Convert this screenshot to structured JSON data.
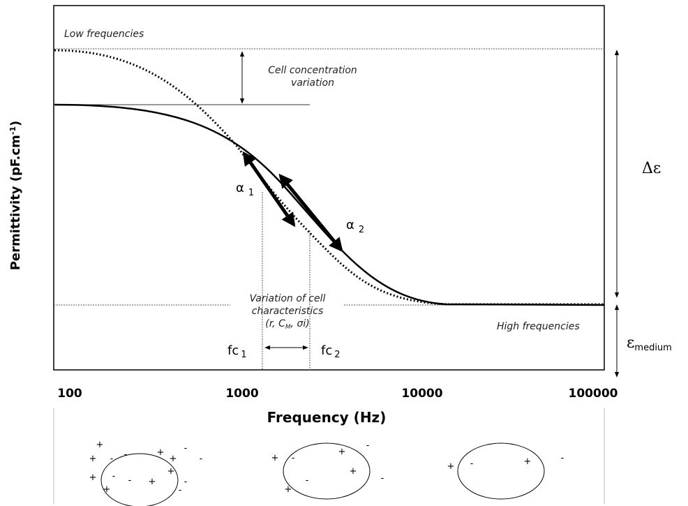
{
  "labels": {
    "low": "Low frequencies",
    "concentration": [
      "Cell concentration",
      "variation"
    ],
    "delta": "Δε",
    "alpha1": {
      "symbol": "α",
      "sub": "1"
    },
    "alpha2": {
      "symbol": "α",
      "sub": "2"
    },
    "variation": [
      "Variation of cell",
      "characteristics",
      "(r, C",
      "M",
      ", σi)"
    ],
    "high": "High frequencies",
    "fc1": {
      "main": "fc",
      "sub": "1"
    },
    "fc2": {
      "main": "fc",
      "sub": "2"
    },
    "medium": {
      "main": "ε",
      "sub": "medium"
    }
  },
  "y_axis": {
    "title": "Permittivity (pF.cm",
    "sup": "-1",
    "end": ")"
  },
  "x_axis": {
    "title": "Frequency (Hz)",
    "ticks": [
      "100",
      "1000",
      "10000",
      "100000"
    ]
  },
  "cells": [
    {
      "signs": [
        "+",
        "+",
        "-",
        "-",
        "+",
        "+",
        "-",
        "-",
        "+",
        "-",
        "+",
        "-",
        "+",
        "-",
        "+",
        "-"
      ]
    },
    {
      "signs": [
        "-",
        "+",
        "-",
        "+",
        "+",
        "-",
        "-",
        "+"
      ]
    },
    {
      "signs": [
        "+",
        "-",
        "+",
        "-"
      ]
    }
  ]
}
